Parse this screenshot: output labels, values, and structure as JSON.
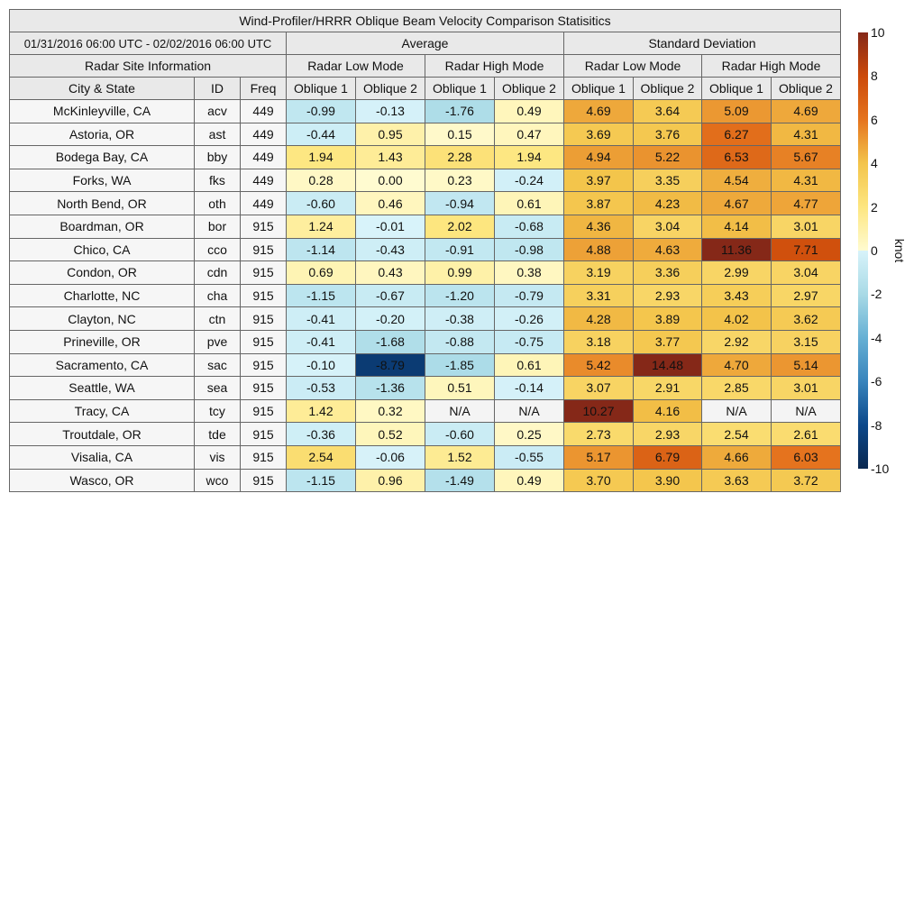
{
  "chart_data": {
    "type": "heatmap",
    "title": "Wind-Profiler/HRRR Oblique Beam Velocity Comparison Statisitics",
    "period": "01/31/2016 06:00 UTC - 02/02/2016 06:00 UTC",
    "group_headers": [
      "Average",
      "Standard Deviation"
    ],
    "info_header": "Radar Site Information",
    "mode_headers": [
      "Radar Low Mode",
      "Radar High Mode",
      "Radar Low Mode",
      "Radar High Mode"
    ],
    "columns": [
      "City & State",
      "ID",
      "Freq",
      "Oblique 1",
      "Oblique 2",
      "Oblique 1",
      "Oblique 2",
      "Oblique 1",
      "Oblique 2",
      "Oblique 1",
      "Oblique 2"
    ],
    "rows": [
      [
        "McKinleyville, CA",
        "acv",
        "449",
        "-0.99",
        "-0.13",
        "-1.76",
        "0.49",
        "4.69",
        "3.64",
        "5.09",
        "4.69"
      ],
      [
        "Astoria, OR",
        "ast",
        "449",
        "-0.44",
        "0.95",
        "0.15",
        "0.47",
        "3.69",
        "3.76",
        "6.27",
        "4.31"
      ],
      [
        "Bodega Bay, CA",
        "bby",
        "449",
        "1.94",
        "1.43",
        "2.28",
        "1.94",
        "4.94",
        "5.22",
        "6.53",
        "5.67"
      ],
      [
        "Forks, WA",
        "fks",
        "449",
        "0.28",
        "0.00",
        "0.23",
        "-0.24",
        "3.97",
        "3.35",
        "4.54",
        "4.31"
      ],
      [
        "North Bend, OR",
        "oth",
        "449",
        "-0.60",
        "0.46",
        "-0.94",
        "0.61",
        "3.87",
        "4.23",
        "4.67",
        "4.77"
      ],
      [
        "Boardman, OR",
        "bor",
        "915",
        "1.24",
        "-0.01",
        "2.02",
        "-0.68",
        "4.36",
        "3.04",
        "4.14",
        "3.01"
      ],
      [
        "Chico, CA",
        "cco",
        "915",
        "-1.14",
        "-0.43",
        "-0.91",
        "-0.98",
        "4.88",
        "4.63",
        "11.36",
        "7.71"
      ],
      [
        "Condon, OR",
        "cdn",
        "915",
        "0.69",
        "0.43",
        "0.99",
        "0.38",
        "3.19",
        "3.36",
        "2.99",
        "3.04"
      ],
      [
        "Charlotte, NC",
        "cha",
        "915",
        "-1.15",
        "-0.67",
        "-1.20",
        "-0.79",
        "3.31",
        "2.93",
        "3.43",
        "2.97"
      ],
      [
        "Clayton, NC",
        "ctn",
        "915",
        "-0.41",
        "-0.20",
        "-0.38",
        "-0.26",
        "4.28",
        "3.89",
        "4.02",
        "3.62"
      ],
      [
        "Prineville, OR",
        "pve",
        "915",
        "-0.41",
        "-1.68",
        "-0.88",
        "-0.75",
        "3.18",
        "3.77",
        "2.92",
        "3.15"
      ],
      [
        "Sacramento, CA",
        "sac",
        "915",
        "-0.10",
        "-8.79",
        "-1.85",
        "0.61",
        "5.42",
        "14.48",
        "4.70",
        "5.14"
      ],
      [
        "Seattle, WA",
        "sea",
        "915",
        "-0.53",
        "-1.36",
        "0.51",
        "-0.14",
        "3.07",
        "2.91",
        "2.85",
        "3.01"
      ],
      [
        "Tracy, CA",
        "tcy",
        "915",
        "1.42",
        "0.32",
        "N/A",
        "N/A",
        "10.27",
        "4.16",
        "N/A",
        "N/A"
      ],
      [
        "Troutdale, OR",
        "tde",
        "915",
        "-0.36",
        "0.52",
        "-0.60",
        "0.25",
        "2.73",
        "2.93",
        "2.54",
        "2.61"
      ],
      [
        "Visalia, CA",
        "vis",
        "915",
        "2.54",
        "-0.06",
        "1.52",
        "-0.55",
        "5.17",
        "6.79",
        "4.66",
        "6.03"
      ],
      [
        "Wasco, OR",
        "wco",
        "915",
        "-1.15",
        "0.96",
        "-1.49",
        "0.49",
        "3.70",
        "3.90",
        "3.63",
        "3.72"
      ]
    ],
    "colorbar": {
      "label": "knot",
      "range": [
        -10,
        10
      ],
      "ticks": [
        "10",
        "8",
        "6",
        "4",
        "2",
        "0",
        "-2",
        "-4",
        "-6",
        "-8",
        "-10"
      ]
    },
    "colors": {
      "na": "#f4f4f4"
    }
  }
}
